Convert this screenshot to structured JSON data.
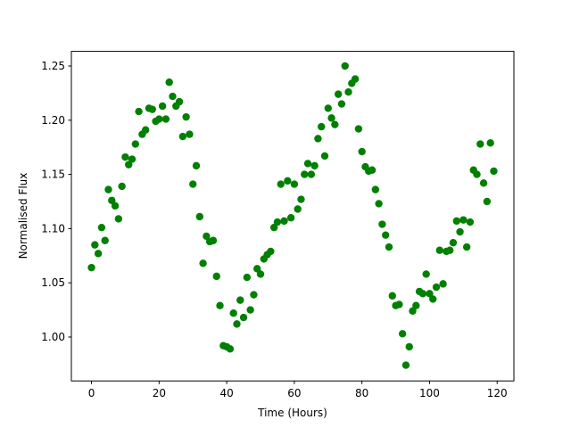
{
  "chart_data": {
    "type": "scatter",
    "x_label": "Time (Hours)",
    "y_label": "Normalised Flux",
    "color": "#008000",
    "x": [
      0,
      1,
      2,
      3,
      4,
      5,
      6,
      7,
      8,
      9,
      10,
      11,
      12,
      13,
      14,
      15,
      16,
      17,
      18,
      19,
      20,
      21,
      22,
      23,
      24,
      25,
      26,
      27,
      28,
      29,
      30,
      31,
      32,
      33,
      34,
      35,
      36,
      37,
      38,
      39,
      40,
      41,
      42,
      43,
      44,
      45,
      46,
      47,
      48,
      49,
      50,
      51,
      52,
      53,
      54,
      55,
      56,
      57,
      58,
      59,
      60,
      61,
      62,
      63,
      64,
      65,
      66,
      67,
      68,
      69,
      70,
      71,
      72,
      73,
      74,
      75,
      76,
      77,
      78,
      79,
      80,
      81,
      82,
      83,
      84,
      85,
      86,
      87,
      88,
      89,
      90,
      91,
      92,
      93,
      94,
      95,
      96,
      97,
      98,
      99,
      100,
      101,
      102,
      103,
      104,
      105,
      106,
      107,
      108,
      109,
      110,
      111,
      112,
      113,
      114,
      115,
      116,
      117,
      118,
      119
    ],
    "values": [
      1.064,
      1.085,
      1.077,
      1.101,
      1.089,
      1.136,
      1.126,
      1.121,
      1.109,
      1.139,
      1.166,
      1.159,
      1.164,
      1.178,
      1.208,
      1.187,
      1.191,
      1.211,
      1.21,
      1.199,
      1.201,
      1.213,
      1.201,
      1.235,
      1.222,
      1.213,
      1.217,
      1.185,
      1.203,
      1.187,
      1.141,
      1.158,
      1.111,
      1.068,
      1.093,
      1.088,
      1.089,
      1.056,
      1.029,
      0.992,
      0.991,
      0.989,
      1.022,
      1.012,
      1.034,
      1.018,
      1.055,
      1.025,
      1.039,
      1.063,
      1.058,
      1.072,
      1.076,
      1.079,
      1.101,
      1.106,
      1.141,
      1.107,
      1.144,
      1.11,
      1.141,
      1.118,
      1.127,
      1.15,
      1.16,
      1.15,
      1.158,
      1.183,
      1.194,
      1.167,
      1.211,
      1.202,
      1.196,
      1.224,
      1.215,
      1.25,
      1.226,
      1.234,
      1.238,
      1.192,
      1.171,
      1.157,
      1.153,
      1.154,
      1.136,
      1.123,
      1.104,
      1.094,
      1.083,
      1.038,
      1.029,
      1.03,
      1.003,
      0.974,
      0.991,
      1.024,
      1.029,
      1.042,
      1.04,
      1.058,
      1.04,
      1.035,
      1.046,
      1.08,
      1.049,
      1.079,
      1.08,
      1.087,
      1.107,
      1.097,
      1.108,
      1.083,
      1.106,
      1.154,
      1.15,
      1.178,
      1.142,
      1.125,
      1.179,
      1.153
    ],
    "xlim": [
      -5.95,
      124.95
    ],
    "ylim": [
      0.9595,
      1.2635
    ],
    "xticks": [
      0,
      20,
      40,
      60,
      80,
      100,
      120
    ],
    "yticks": [
      {
        "value": 1,
        "label": "1.00"
      },
      1.05,
      {
        "value": 1.1,
        "label": "1.10"
      },
      1.15,
      {
        "value": 1.2,
        "label": "1.20"
      },
      1.25
    ]
  }
}
